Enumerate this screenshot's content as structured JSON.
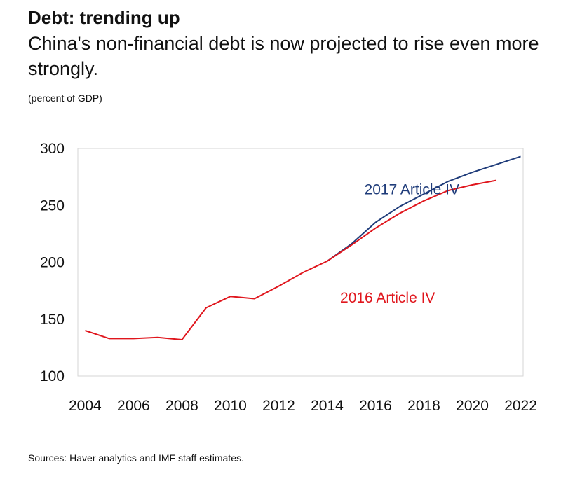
{
  "header": {
    "title": "Debt: trending up",
    "subtitle": "China's non-financial debt is now projected to rise even more strongly.",
    "unit_note": "(percent of GDP)"
  },
  "footer": {
    "source": "Sources: Haver analytics and IMF staff estimates."
  },
  "chart_data": {
    "type": "line",
    "title": "Debt: trending up",
    "subtitle": "China's non-financial debt is now projected to rise even more strongly.",
    "ylabel": "(percent of GDP)",
    "xlabel": "",
    "xlim": [
      2003.7,
      2022.1
    ],
    "ylim": [
      100,
      300
    ],
    "x_ticks": [
      2004,
      2006,
      2008,
      2010,
      2012,
      2014,
      2016,
      2018,
      2020,
      2022
    ],
    "y_ticks": [
      100,
      150,
      200,
      250,
      300
    ],
    "grid": false,
    "series": [
      {
        "name": "2017 Article IV",
        "color": "#1f3c7a",
        "x": [
          2014,
          2015,
          2016,
          2017,
          2018,
          2019,
          2020,
          2021,
          2022
        ],
        "values": [
          201,
          216,
          235,
          249,
          260,
          271,
          279,
          286,
          293
        ]
      },
      {
        "name": "2016 Article IV",
        "color": "#e0161d",
        "x": [
          2004,
          2005,
          2006,
          2007,
          2008,
          2009,
          2010,
          2011,
          2012,
          2013,
          2014,
          2015,
          2016,
          2017,
          2018,
          2019,
          2020,
          2021
        ],
        "values": [
          140,
          133,
          133,
          134,
          132,
          160,
          170,
          168,
          179,
          191,
          201,
          215,
          230,
          243,
          254,
          263,
          268,
          272
        ]
      }
    ]
  }
}
